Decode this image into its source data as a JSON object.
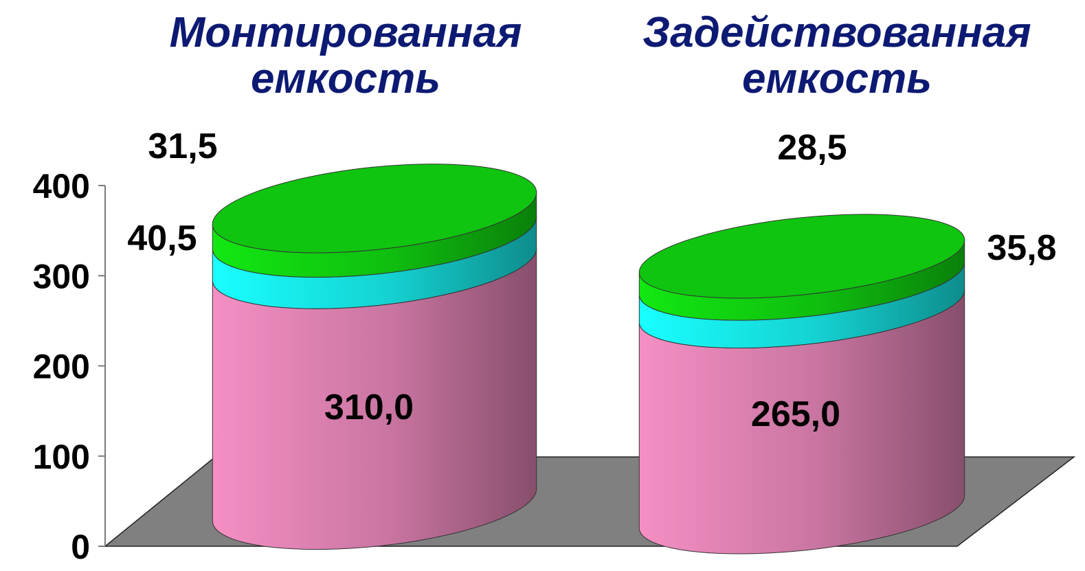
{
  "chart_data": {
    "type": "bar",
    "style": "3d-stacked-cylinder",
    "categories": [
      "Монтированная емкость",
      "Задействованная емкость"
    ],
    "category_title_lines": [
      [
        "Монтированная",
        "емкость"
      ],
      [
        "Задействованная",
        "емкость"
      ]
    ],
    "series": [
      {
        "values": [
          310.0,
          265.0
        ],
        "labels": [
          "310,0",
          "265,0"
        ],
        "color": "#f58fc4"
      },
      {
        "values": [
          40.5,
          35.8
        ],
        "labels": [
          "40,5",
          "35,8"
        ],
        "color": "#19ffff"
      },
      {
        "values": [
          31.5,
          28.5
        ],
        "labels": [
          "31,5",
          "28,5"
        ],
        "color": "#12e812"
      }
    ],
    "yticks": [
      0,
      100,
      200,
      300,
      400
    ],
    "ytick_labels": [
      "0",
      "100",
      "200",
      "300",
      "400"
    ],
    "ylim": [
      0,
      400
    ],
    "floor_color": "#808080",
    "title_color": "#0d1a73",
    "legend": false,
    "grid": false
  }
}
